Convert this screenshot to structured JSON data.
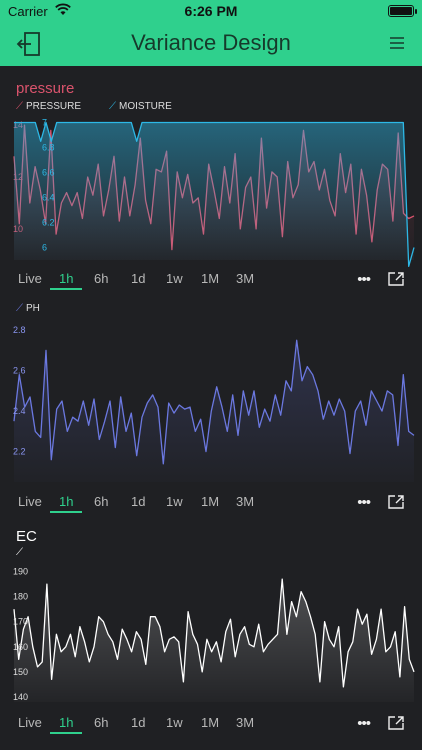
{
  "status_bar": {
    "carrier": "Carrier",
    "time": "6:26 PM",
    "battery_level": 1.0
  },
  "header": {
    "title": "Variance Design"
  },
  "range_options": [
    "Live",
    "1h",
    "6h",
    "1d",
    "1w",
    "1M",
    "3M"
  ],
  "active_range": "1h",
  "colors": {
    "accent": "#2fd08d",
    "pressure": "#d9536c",
    "moisture": "#2db8e6",
    "ph": "#6b78e0",
    "ec": "#ffffff"
  },
  "widgets": {
    "pressure": {
      "title": "pressure",
      "legend": [
        "PRESSURE",
        "MOISTURE"
      ]
    },
    "ph": {
      "title": "",
      "legend": [
        "PH"
      ]
    },
    "ec": {
      "title": "EC",
      "legend": [
        ""
      ]
    }
  },
  "chart_data": [
    {
      "type": "line",
      "title": "pressure",
      "series": [
        {
          "name": "PRESSURE",
          "axis": "left",
          "y_ticks": [
            "14",
            "12",
            "10"
          ],
          "ylim": [
            8.8,
            14.2
          ],
          "values": [
            12.8,
            10.2,
            14,
            11,
            12.4,
            11.5,
            10.2,
            13.8,
            9.8,
            11,
            11.4,
            10.9,
            11.4,
            10.4,
            12,
            11.3,
            12.5,
            10.5,
            11.5,
            12.8,
            10.3,
            12,
            10.5,
            11.7,
            13.5,
            11.1,
            10.2,
            12.3,
            12.2,
            13,
            9.2,
            12.2,
            11.2,
            12.1,
            11,
            11.2,
            9.8,
            12.5,
            11.5,
            10.4,
            12.4,
            11,
            12.9,
            10,
            11.6,
            12,
            10,
            13.5,
            10.8,
            12.2,
            12,
            9.7,
            12.6,
            11.2,
            11.7,
            13.8,
            12.2,
            12.6,
            11.5,
            12.3,
            11.1,
            10.5,
            12.9,
            11.4,
            12.5,
            9.8,
            12.3,
            11.3,
            9.5,
            11.5,
            12.5,
            12.3,
            10.3,
            13.7,
            10.6,
            10.4,
            10.5
          ]
        },
        {
          "name": "MOISTURE",
          "axis": "right",
          "y_ticks": [
            "7",
            "6.8",
            "6.6",
            "6.4",
            "6.2",
            "6"
          ],
          "ylim": [
            5.9,
            7.02
          ],
          "values": [
            7,
            7,
            7,
            7,
            7,
            6.85,
            7,
            6.85,
            7,
            7,
            7,
            7,
            7,
            7,
            7,
            7,
            7,
            7,
            7,
            7,
            7,
            7,
            7,
            6.85,
            7,
            7,
            7,
            7,
            7,
            7,
            7,
            7,
            7,
            7,
            7,
            7,
            7,
            7,
            7,
            7,
            7,
            7,
            7,
            7,
            7,
            7,
            7,
            7,
            7,
            7,
            7,
            7,
            7,
            7,
            7,
            7,
            7,
            7,
            7,
            7,
            7,
            7,
            7,
            7,
            7,
            7,
            7,
            7,
            7,
            7,
            7,
            7,
            7,
            7,
            5.85,
            6
          ]
        }
      ]
    },
    {
      "type": "line",
      "title": "",
      "series": [
        {
          "name": "PH",
          "y_ticks": [
            "2.8",
            "2.6",
            "2.4",
            "2.2"
          ],
          "ylim": [
            2.05,
            2.85
          ],
          "values": [
            2.35,
            2.58,
            2.42,
            2.47,
            2.3,
            2.27,
            2.7,
            2.16,
            2.41,
            2.45,
            2.3,
            2.37,
            2.35,
            2.45,
            2.33,
            2.46,
            2.26,
            2.35,
            2.45,
            2.22,
            2.47,
            2.3,
            2.39,
            2.18,
            2.37,
            2.44,
            2.48,
            2.42,
            2.14,
            2.44,
            2.39,
            2.43,
            2.41,
            2.42,
            2.3,
            2.36,
            2.2,
            2.4,
            2.52,
            2.42,
            2.3,
            2.48,
            2.28,
            2.5,
            2.38,
            2.5,
            2.32,
            2.41,
            2.35,
            2.48,
            2.38,
            2.55,
            2.5,
            2.75,
            2.55,
            2.62,
            2.58,
            2.5,
            2.36,
            2.45,
            2.38,
            2.46,
            2.4,
            2.19,
            2.4,
            2.45,
            2.33,
            2.5,
            2.45,
            2.4,
            2.5,
            2.48,
            2.23,
            2.58,
            2.3,
            2.28
          ]
        }
      ]
    },
    {
      "type": "line",
      "title": "EC",
      "series": [
        {
          "name": "EC",
          "y_ticks": [
            "190",
            "180",
            "170",
            "160",
            "150",
            "140"
          ],
          "ylim": [
            138,
            193
          ],
          "values": [
            175,
            155,
            167,
            172,
            160,
            152,
            154,
            185,
            147,
            165,
            158,
            160,
            165,
            156,
            168,
            162,
            154,
            160,
            172,
            170,
            165,
            162,
            155,
            167,
            163,
            158,
            166,
            163,
            153,
            172,
            172,
            168,
            158,
            163,
            164,
            162,
            146,
            174,
            165,
            161,
            150,
            163,
            158,
            162,
            154,
            166,
            171,
            156,
            165,
            168,
            161,
            160,
            169,
            158,
            161,
            163,
            165,
            187,
            165,
            178,
            172,
            182,
            178,
            172,
            165,
            146,
            170,
            163,
            160,
            168,
            144,
            158,
            162,
            175,
            169,
            173,
            157,
            163,
            175,
            158,
            160,
            166,
            148,
            176,
            155,
            150
          ]
        }
      ]
    }
  ]
}
